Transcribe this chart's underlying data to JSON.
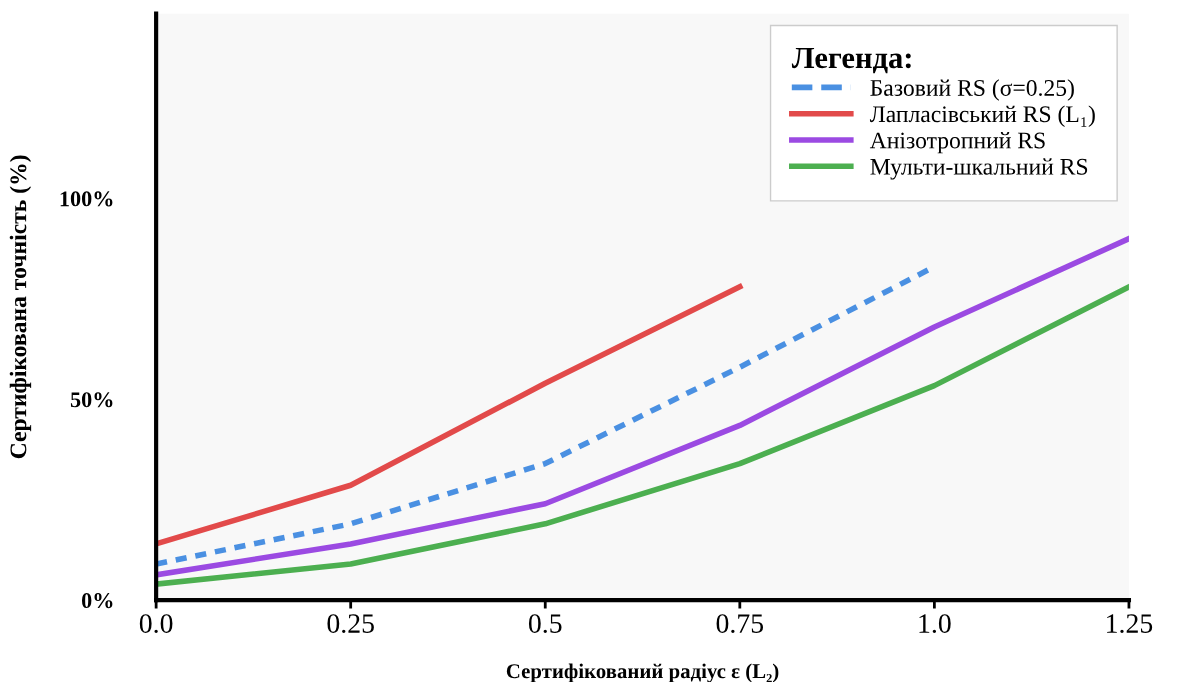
{
  "chart_data": {
    "type": "line",
    "xlabel": "Сертифікований радіус ε (L₂)",
    "ylabel": "Сертифікована точність (%)",
    "legend_title": "Легенда:",
    "x": [
      0.0,
      0.25,
      0.5,
      0.75,
      1.0,
      1.25
    ],
    "xlim": [
      0.0,
      1.25
    ],
    "xticks": [
      {
        "value": 0.0,
        "label": "0.0"
      },
      0.25,
      0.5,
      0.75,
      {
        "value": 1.0,
        "label": "1.0"
      },
      1.25
    ],
    "ylim": [
      0,
      146
    ],
    "yticks": [
      {
        "value": 0,
        "label": "0%"
      },
      {
        "value": 50,
        "label": "50%"
      },
      {
        "value": 100,
        "label": "100%"
      }
    ],
    "grid": false,
    "legend": "top right",
    "series": [
      {
        "name": "Базовий RS (σ=0.25)",
        "color": "#4a90e2",
        "line_style": "dashed",
        "values": [
          9,
          19,
          34,
          58,
          83,
          null
        ]
      },
      {
        "name": "Лапласівський RS (L₁)",
        "color": "#e24a4a",
        "line_style": "solid",
        "values": [
          14,
          28.6,
          54,
          78,
          null,
          null
        ]
      },
      {
        "name": "Анізотропний RS",
        "color": "#9b4ae2",
        "line_style": "solid",
        "values": [
          6.3,
          14,
          24,
          43.5,
          68,
          90
        ]
      },
      {
        "name": "Мульти-шкальний RS",
        "color": "#4caf50",
        "line_style": "solid",
        "values": [
          4,
          9,
          19,
          34,
          53.4,
          78
        ]
      }
    ]
  }
}
